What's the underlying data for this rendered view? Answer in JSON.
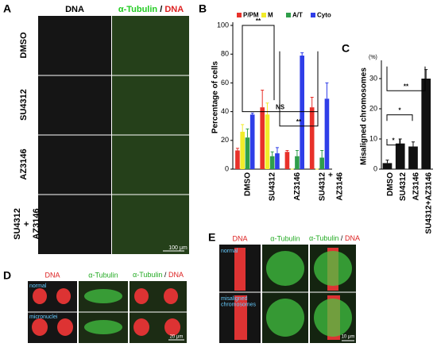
{
  "panels": {
    "A": "A",
    "B": "B",
    "C": "C",
    "D": "D",
    "E": "E"
  },
  "panel_a": {
    "col_dna": "DNA",
    "col_merge": {
      "tub": "α-Tubulin",
      "sep": "/",
      "dna": "DNA"
    },
    "rows": [
      "DMSO",
      "SU4312",
      "AZ3146",
      "SU4312\n+\nAZ3146"
    ],
    "scale": "100 μm"
  },
  "panel_d": {
    "col_dna": "DNA",
    "col_tub": "α-Tubulin",
    "col_merge": {
      "tub": "α-Tubulin",
      "sep": "/",
      "dna": "DNA"
    },
    "rows": [
      "normal",
      "micronuclei"
    ],
    "scale": "20 μm"
  },
  "panel_e": {
    "col_dna": "DNA",
    "col_tub": "α-Tubulin",
    "col_merge": {
      "tub": "α-Tubulin",
      "sep": "/",
      "dna": "DNA"
    },
    "rows": [
      "normal",
      "misaligned\nchromosomes"
    ],
    "scale": "10 μm"
  },
  "chart_data": [
    {
      "type": "bar",
      "ylabel": "Percentage of cells",
      "categories": [
        "DMSO",
        "SU4312",
        "AZ3146",
        "SU4312\n+\nAZ3146"
      ],
      "series": [
        {
          "name": "P/PM",
          "color": "#e8312a",
          "values": [
            13,
            43,
            12,
            43
          ],
          "errors": [
            1.5,
            12,
            1,
            7
          ]
        },
        {
          "name": "M",
          "color": "#f2ec2a",
          "values": [
            26,
            38,
            0,
            0
          ],
          "errors": [
            5,
            8,
            0,
            0
          ]
        },
        {
          "name": "A/T",
          "color": "#2f9e4a",
          "values": [
            22,
            9,
            9,
            8
          ],
          "errors": [
            6,
            3,
            4,
            5
          ]
        },
        {
          "name": "Cyto",
          "color": "#2f3ee8",
          "values": [
            38,
            11,
            79,
            49
          ],
          "errors": [
            1,
            4,
            2,
            11
          ]
        }
      ],
      "ylim": [
        0,
        100
      ],
      "yticks": [
        0,
        20,
        40,
        60,
        80,
        100
      ],
      "annotations": [
        "**",
        "NS",
        "**"
      ]
    },
    {
      "type": "bar",
      "ylabel": "Misaligned chromosomes",
      "yunit": "(%)",
      "categories": [
        "DMSO",
        "SU4312",
        "AZ3146",
        "SU4312+AZ3146"
      ],
      "series": [
        {
          "name": null,
          "color": "#111111",
          "values": [
            2,
            8.5,
            7.5,
            30
          ],
          "errors": [
            1,
            1.5,
            1.5,
            3
          ]
        }
      ],
      "ylim": [
        0,
        35
      ],
      "yticks": [
        0,
        10,
        20,
        30
      ],
      "annotations": [
        "*",
        "*",
        "**"
      ]
    }
  ]
}
